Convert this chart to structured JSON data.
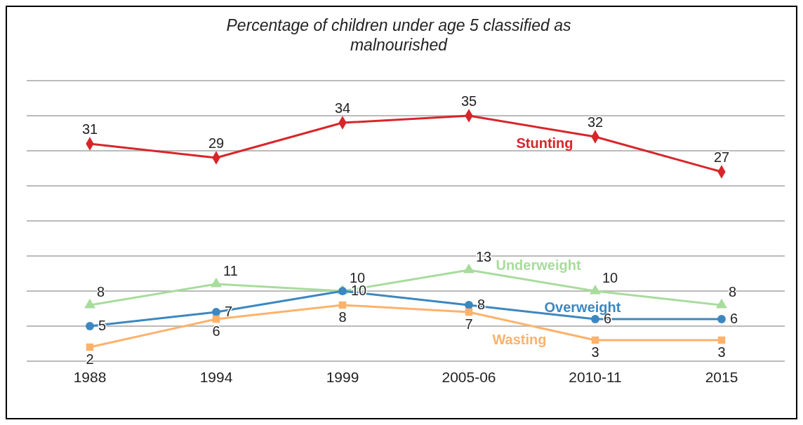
{
  "chart_data": {
    "type": "line",
    "title": "Percentage of children under age 5 classified as malnourished",
    "categories": [
      "1988",
      "1994",
      "1999",
      "2005-06",
      "2010-11",
      "2015"
    ],
    "series": [
      {
        "name": "Stunting",
        "color": "#d7262b",
        "marker": "diamond",
        "values": [
          31,
          29,
          34,
          35,
          32,
          27
        ]
      },
      {
        "name": "Underweight",
        "color": "#a8dc9c",
        "marker": "triangle",
        "values": [
          8,
          11,
          10,
          13,
          10,
          8
        ]
      },
      {
        "name": "Overweight",
        "color": "#3c87c0",
        "marker": "circle",
        "values": [
          5,
          7,
          10,
          8,
          6,
          6
        ]
      },
      {
        "name": "Wasting",
        "color": "#fdb26b",
        "marker": "square",
        "values": [
          2,
          6,
          8,
          7,
          3,
          3
        ]
      }
    ],
    "ylim": [
      0,
      40
    ],
    "yticks": [
      {
        "value": 0,
        "label": null
      },
      {
        "value": 5,
        "label": null
      },
      {
        "value": 10,
        "label": null
      },
      {
        "value": 15,
        "label": null
      },
      {
        "value": 20,
        "label": null
      },
      {
        "value": 25,
        "label": null
      },
      {
        "value": 30,
        "label": null
      },
      {
        "value": 35,
        "label": null
      },
      {
        "value": 40,
        "label": null
      }
    ],
    "grid": "y",
    "tick_labels": "x",
    "data_labels": true,
    "line_style": "solid"
  }
}
